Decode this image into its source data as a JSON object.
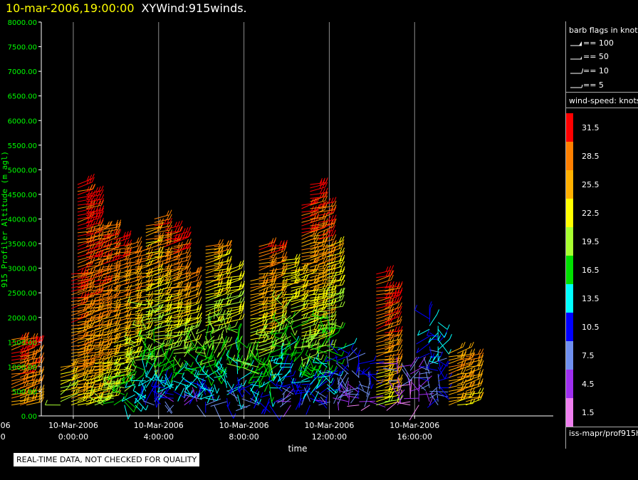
{
  "title": {
    "date": "10-mar-2006,19:00:00",
    "name": "XYWind:915winds."
  },
  "legend": {
    "barb_title": "barb flags in knots",
    "flags": [
      {
        "label": "== 100",
        "kind": "pennant"
      },
      {
        "label": "== 50",
        "kind": "pennant-small"
      },
      {
        "label": "== 10",
        "kind": "full"
      },
      {
        "label": "== 5",
        "kind": "half"
      }
    ],
    "speed_title": "wind-speed: knots",
    "source": "iss-mapr/prof915h"
  },
  "disclaimer": "REAL-TIME DATA, NOT CHECKED FOR QUALITY",
  "chart_data": {
    "type": "scatter",
    "title": "XYWind:915winds.",
    "subtitle": "10-mar-2006,19:00:00",
    "xlabel": "time",
    "ylabel": "915 Profiler Altitude (m agl)",
    "ylim": [
      0,
      8000
    ],
    "xlim": [
      -1.5,
      22.5
    ],
    "x_unit": "hours after 10-Mar-2006 0:00:00",
    "grid": "vertical lines at x ticks",
    "legend_placement": "right",
    "y_ticks": [
      "0.00",
      "500.00",
      "1000.00",
      "1500.00",
      "2000.00",
      "2500.00",
      "3000.00",
      "3500.00",
      "4000.00",
      "4500.00",
      "5000.00",
      "5500.00",
      "6000.00",
      "6500.00",
      "7000.00",
      "7500.00",
      "8000.00"
    ],
    "x_ticks": [
      {
        "x": -4,
        "date": "9-Mar-2006",
        "time": "20:00:00"
      },
      {
        "x": 0,
        "date": "10-Mar-2006",
        "time": "0:00:00"
      },
      {
        "x": 4,
        "date": "10-Mar-2006",
        "time": "4:00:00"
      },
      {
        "x": 8,
        "date": "10-Mar-2006",
        "time": "8:00:00"
      },
      {
        "x": 12,
        "date": "10-Mar-2006",
        "time": "12:00:00"
      },
      {
        "x": 16,
        "date": "10-Mar-2006",
        "time": "16:00:00"
      }
    ],
    "colorbar": {
      "levels": [
        31.5,
        28.5,
        25.5,
        22.5,
        19.5,
        16.5,
        13.5,
        10.5,
        7.5,
        4.5,
        1.5
      ],
      "colors": [
        "#ff0000",
        "#ff8000",
        "#ffb000",
        "#ffff00",
        "#a8ff30",
        "#00e000",
        "#00ffff",
        "#0000ff",
        "#6f8fef",
        "#9f2fef",
        "#ef7fef"
      ]
    },
    "columns": [
      {
        "x": -5.0,
        "top": 1500,
        "peak": 26,
        "low": 18
      },
      {
        "x": -4.8,
        "top": 1400,
        "peak": 25,
        "low": 19
      },
      {
        "x": -2.9,
        "top": 1600,
        "peak": 31,
        "low": 27
      },
      {
        "x": -2.5,
        "top": 1550,
        "peak": 31,
        "low": 27
      },
      {
        "x": -2.2,
        "top": 1500,
        "peak": 30,
        "low": 26
      },
      {
        "x": -0.6,
        "top": 1050,
        "peak": 24,
        "low": 20
      },
      {
        "x": -0.1,
        "top": 2900,
        "peak": 31,
        "low": 22
      },
      {
        "x": 0.2,
        "top": 4700,
        "peak": 31,
        "low": 24
      },
      {
        "x": 0.6,
        "top": 4500,
        "peak": 31,
        "low": 23
      },
      {
        "x": 1.0,
        "top": 3800,
        "peak": 31,
        "low": 22
      },
      {
        "x": 1.4,
        "top": 3900,
        "peak": 30,
        "low": 19
      },
      {
        "x": 1.9,
        "top": 3600,
        "peak": 30,
        "low": 17
      },
      {
        "x": 2.4,
        "top": 3500,
        "peak": 29,
        "low": 14
      },
      {
        "x": 2.9,
        "top": 3300,
        "peak": 28,
        "low": 12
      },
      {
        "x": 3.4,
        "top": 3900,
        "peak": 26,
        "low": 10
      },
      {
        "x": 3.8,
        "top": 4000,
        "peak": 29,
        "low": 9
      },
      {
        "x": 4.3,
        "top": 3800,
        "peak": 31,
        "low": 8
      },
      {
        "x": 4.7,
        "top": 3700,
        "peak": 31,
        "low": 7
      },
      {
        "x": 5.2,
        "top": 2900,
        "peak": 28,
        "low": 6
      },
      {
        "x": 5.8,
        "top": 1500,
        "peak": 18,
        "low": 5
      },
      {
        "x": 6.2,
        "top": 3500,
        "peak": 27,
        "low": 9
      },
      {
        "x": 6.6,
        "top": 3500,
        "peak": 26,
        "low": 9
      },
      {
        "x": 7.2,
        "top": 3000,
        "peak": 24,
        "low": 10
      },
      {
        "x": 7.7,
        "top": 1800,
        "peak": 18,
        "low": 8
      },
      {
        "x": 8.3,
        "top": 2800,
        "peak": 28,
        "low": 8
      },
      {
        "x": 8.7,
        "top": 3500,
        "peak": 30,
        "low": 10
      },
      {
        "x": 9.2,
        "top": 3500,
        "peak": 30,
        "low": 9
      },
      {
        "x": 9.8,
        "top": 3200,
        "peak": 24,
        "low": 6
      },
      {
        "x": 10.2,
        "top": 3000,
        "peak": 25,
        "low": 5
      },
      {
        "x": 10.7,
        "top": 4300,
        "peak": 31,
        "low": 8
      },
      {
        "x": 11.1,
        "top": 4700,
        "peak": 31,
        "low": 9
      },
      {
        "x": 11.5,
        "top": 4300,
        "peak": 31,
        "low": 9
      },
      {
        "x": 11.9,
        "top": 3500,
        "peak": 25,
        "low": 6
      },
      {
        "x": 12.4,
        "top": 1400,
        "peak": 12,
        "low": 5
      },
      {
        "x": 12.9,
        "top": 1300,
        "peak": 9,
        "low": 4
      },
      {
        "x": 13.4,
        "top": 1200,
        "peak": 10,
        "low": 4
      },
      {
        "x": 13.9,
        "top": 1100,
        "peak": 12,
        "low": 4
      },
      {
        "x": 14.2,
        "top": 2900,
        "peak": 31,
        "low": 22
      },
      {
        "x": 14.6,
        "top": 2600,
        "peak": 31,
        "low": 22
      },
      {
        "x": 15.2,
        "top": 1100,
        "peak": 7,
        "low": 3
      },
      {
        "x": 15.8,
        "top": 1000,
        "peak": 6,
        "low": 3
      },
      {
        "x": 16.2,
        "top": 1000,
        "peak": 6,
        "low": 3
      },
      {
        "x": 16.7,
        "top": 2100,
        "peak": 12,
        "low": 5
      },
      {
        "x": 17.1,
        "top": 1900,
        "peak": 13,
        "low": 8
      },
      {
        "x": 17.6,
        "top": 1300,
        "peak": 27,
        "low": 24
      },
      {
        "x": 18.0,
        "top": 1300,
        "peak": 28,
        "low": 24
      },
      {
        "x": 18.4,
        "top": 1250,
        "peak": 27,
        "low": 24
      }
    ]
  }
}
